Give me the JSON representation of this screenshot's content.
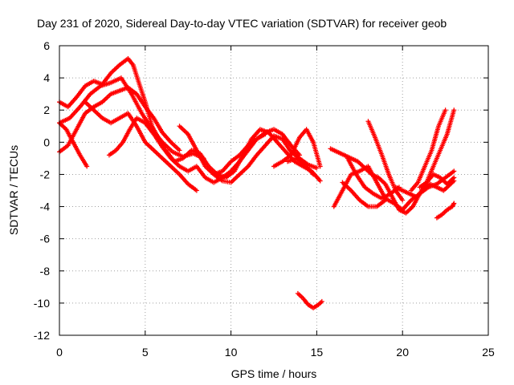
{
  "chart_data": {
    "type": "scatter",
    "title": "Day 231 of 2020, Sidereal Day-to-day VTEC variation (SDTVAR) for receiver geob",
    "xlabel": "GPS time / hours",
    "ylabel": "SDTVAR / TECUs",
    "xlim": [
      0,
      25
    ],
    "ylim": [
      -12,
      6
    ],
    "xticks": [
      "0",
      "5",
      "10",
      "15",
      "20",
      "25"
    ],
    "yticks": [
      "-12",
      "-10",
      "-8",
      "-6",
      "-4",
      "-2",
      "0",
      "2",
      "4",
      "6"
    ],
    "grid": true,
    "marker": "+",
    "color": "#ff0000",
    "series": [
      {
        "name": "s1",
        "x": [
          0,
          0.5,
          1.0,
          1.5,
          2.0,
          2.5,
          3.0,
          3.5,
          4.0,
          4.3,
          4.6,
          5.0,
          5.4,
          5.8,
          6.2
        ],
        "y": [
          2.5,
          2.2,
          2.8,
          3.5,
          3.8,
          3.6,
          4.3,
          4.8,
          5.2,
          4.8,
          3.8,
          2.5,
          1.0,
          0.2,
          -0.3
        ]
      },
      {
        "name": "s2",
        "x": [
          0,
          0.6,
          1.2,
          1.8,
          2.4,
          3.0,
          3.6,
          4.2,
          4.8,
          5.4,
          6.0,
          6.6,
          7.2,
          7.8,
          8.4
        ],
        "y": [
          1.2,
          1.5,
          2.2,
          3.0,
          3.5,
          3.7,
          4.0,
          3.0,
          1.8,
          0.8,
          0.0,
          -0.6,
          -0.9,
          -0.7,
          -1.0
        ]
      },
      {
        "name": "s3",
        "x": [
          0,
          0.4,
          0.8,
          1.2,
          1.6
        ],
        "y": [
          1.2,
          0.8,
          0.0,
          -0.8,
          -1.5
        ]
      },
      {
        "name": "s4",
        "x": [
          0,
          0.5,
          1.0,
          1.5,
          2.0,
          2.5,
          3.0,
          3.5,
          4.0,
          4.5,
          5.0,
          5.5,
          6.0,
          6.5,
          7.0
        ],
        "y": [
          -0.6,
          -0.2,
          0.8,
          1.8,
          2.2,
          2.5,
          3.0,
          3.2,
          3.4,
          3.0,
          2.2,
          1.5,
          0.6,
          0.0,
          -0.5
        ]
      },
      {
        "name": "s5",
        "x": [
          1.5,
          2.0,
          2.5,
          3.0,
          3.5,
          4.0,
          4.5,
          5.0,
          5.5,
          6.0,
          6.5,
          7.0,
          7.5,
          8.0
        ],
        "y": [
          2.5,
          2.0,
          1.5,
          1.2,
          1.5,
          1.8,
          1.0,
          0.0,
          -0.5,
          -1.0,
          -1.5,
          -2.0,
          -2.6,
          -3.0
        ]
      },
      {
        "name": "s6",
        "x": [
          2.9,
          3.3,
          3.7,
          4.1,
          4.5,
          5.0,
          5.5,
          6.0,
          6.5,
          7.0,
          7.5,
          8.0,
          8.5,
          9.0,
          9.5,
          10.0,
          10.5,
          11.0,
          11.5,
          12.0
        ],
        "y": [
          -0.8,
          -0.5,
          0.0,
          0.8,
          1.5,
          1.2,
          0.5,
          -0.3,
          -1.0,
          -1.5,
          -1.8,
          -1.5,
          -2.2,
          -2.5,
          -2.2,
          -1.8,
          -1.2,
          -0.5,
          0.2,
          0.5
        ]
      },
      {
        "name": "s7",
        "x": [
          6.2,
          6.7,
          7.2,
          7.7,
          8.2,
          8.7,
          9.2,
          9.7,
          10.2,
          10.7,
          11.2,
          11.7,
          12.2,
          12.7,
          13.2,
          13.7,
          14.2,
          14.7,
          15.2
        ],
        "y": [
          -0.5,
          -1.2,
          -1.0,
          -0.5,
          -0.7,
          -1.5,
          -2.0,
          -2.2,
          -1.8,
          -0.8,
          0.2,
          0.8,
          0.6,
          0.0,
          -0.6,
          -1.2,
          -1.5,
          -1.8,
          -2.4
        ]
      },
      {
        "name": "s8",
        "x": [
          7.0,
          7.5,
          8.0,
          8.5,
          9.0,
          9.5,
          10.0,
          10.5,
          11.0,
          11.5,
          12.0,
          12.5,
          13.0,
          13.5,
          14.0
        ],
        "y": [
          1.0,
          0.5,
          -0.5,
          -1.5,
          -2.0,
          -1.8,
          -1.2,
          -0.8,
          -0.2,
          0.2,
          0.6,
          0.8,
          0.5,
          -0.2,
          -0.8
        ]
      },
      {
        "name": "s9",
        "x": [
          9.0,
          9.5,
          10.0,
          10.5,
          11.0,
          11.5,
          12.0,
          12.5,
          13.0,
          13.5,
          14.0,
          14.5,
          15.0
        ],
        "y": [
          -2.0,
          -2.4,
          -2.5,
          -2.0,
          -1.5,
          -0.8,
          -0.2,
          0.4,
          0.2,
          -0.6,
          -1.0,
          -1.4,
          -1.6
        ]
      },
      {
        "name": "s10",
        "x": [
          12.5,
          13.0,
          13.5,
          14.0,
          14.4,
          14.8,
          15.2
        ],
        "y": [
          -1.5,
          -1.2,
          -0.8,
          0.3,
          0.8,
          0.0,
          -1.5
        ]
      },
      {
        "name": "s11",
        "x": [
          13.3,
          13.8,
          14.3,
          14.8
        ],
        "y": [
          -1.2,
          -1.0,
          -1.4,
          -2.0
        ]
      },
      {
        "name": "s12",
        "x": [
          13.9,
          14.2,
          14.5,
          14.8,
          15.1,
          15.3
        ],
        "y": [
          -9.4,
          -9.7,
          -10.1,
          -10.3,
          -10.1,
          -9.9
        ]
      },
      {
        "name": "s13",
        "x": [
          15.8,
          16.2,
          16.6,
          17.0,
          17.4,
          17.8,
          18.2,
          18.6,
          19.0,
          19.4,
          19.8,
          20.2,
          20.6,
          21.0,
          21.4,
          21.8,
          22.2,
          22.6,
          23.0
        ],
        "y": [
          -0.4,
          -0.6,
          -0.8,
          -1.0,
          -1.2,
          -1.6,
          -2.0,
          -2.2,
          -2.6,
          -3.4,
          -4.2,
          -4.4,
          -4.0,
          -3.2,
          -2.5,
          -2.0,
          -2.2,
          -2.6,
          -2.2
        ]
      },
      {
        "name": "s14",
        "x": [
          16.0,
          16.5,
          17.0,
          17.5,
          18.0,
          18.5,
          19.0,
          19.5,
          20.0,
          20.5,
          21.0,
          21.5,
          22.0,
          22.5,
          23.0
        ],
        "y": [
          -4.0,
          -3.0,
          -2.0,
          -1.8,
          -1.5,
          -2.5,
          -3.5,
          -3.8,
          -4.2,
          -3.6,
          -3.2,
          -2.8,
          -2.6,
          -2.2,
          -1.8
        ]
      },
      {
        "name": "s15",
        "x": [
          16.5,
          17.0,
          17.5,
          18.0,
          18.5,
          19.0
        ],
        "y": [
          -2.5,
          -3.0,
          -3.6,
          -4.0,
          -4.0,
          -3.6
        ]
      },
      {
        "name": "s16",
        "x": [
          16.8,
          17.3,
          17.8,
          18.3,
          18.8,
          19.3,
          19.8
        ],
        "y": [
          -1.0,
          -2.0,
          -2.8,
          -3.2,
          -3.5,
          -3.2,
          -2.8
        ]
      },
      {
        "name": "s17",
        "x": [
          18.0,
          18.4,
          18.8,
          19.2,
          19.6,
          20.0
        ],
        "y": [
          1.3,
          0.3,
          -0.8,
          -2.0,
          -3.0,
          -3.6
        ]
      },
      {
        "name": "s18",
        "x": [
          19.6,
          20.0,
          20.4,
          20.8,
          21.2,
          21.6,
          22.0,
          22.4,
          22.8,
          23.0
        ],
        "y": [
          -2.8,
          -3.0,
          -3.2,
          -3.4,
          -3.0,
          -2.6,
          -2.8,
          -3.0,
          -2.6,
          -2.4
        ]
      },
      {
        "name": "s19",
        "x": [
          20.5,
          20.9,
          21.3,
          21.7,
          22.1,
          22.5
        ],
        "y": [
          -3.0,
          -2.5,
          -1.5,
          -0.5,
          1.0,
          2.0
        ]
      },
      {
        "name": "s20",
        "x": [
          21.0,
          21.4,
          21.8,
          22.2,
          22.6,
          23.0
        ],
        "y": [
          -2.8,
          -2.5,
          -1.5,
          -0.5,
          0.5,
          2.0
        ]
      },
      {
        "name": "s21",
        "x": [
          22.0,
          22.3,
          22.6,
          22.9,
          23.0
        ],
        "y": [
          -4.7,
          -4.5,
          -4.2,
          -4.0,
          -3.8
        ]
      }
    ]
  }
}
